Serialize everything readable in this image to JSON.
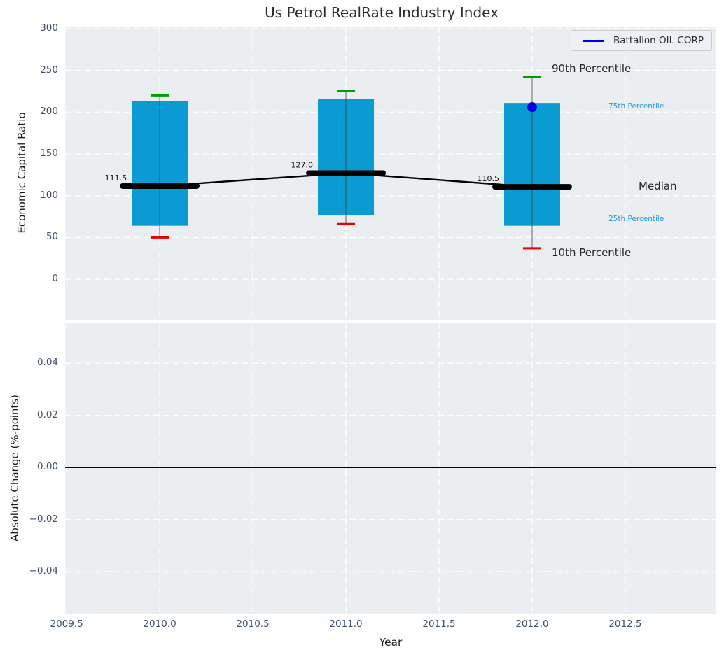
{
  "title": "Us Petrol RealRate Industry Index",
  "legend": {
    "label": "Battalion OIL CORP"
  },
  "annotations": {
    "p90": "90th Percentile",
    "p75": "75th Percentile",
    "median": "Median",
    "p25": "25th Percentile",
    "p10": "10th Percentile"
  },
  "colors": {
    "plot_bg": "#eaeef0",
    "grid": "#ffffff",
    "bar": "#0a9bd2",
    "p90_cap": "#009c00",
    "p10_cap": "#e60000",
    "median_line": "#000000",
    "company": "#0000e6",
    "whisker": "#3a4750",
    "percentile_label": "#1b9cd8",
    "tick_text": "#3f5268",
    "text": "#262626",
    "zero_line": "#000000"
  },
  "chart_data": [
    {
      "type": "boxplot",
      "title": "Us Petrol RealRate Industry Index",
      "ylabel": "Economic Capital Ratio",
      "x": [
        2010,
        2011,
        2012
      ],
      "series": [
        {
          "name": "90th Percentile",
          "values": [
            220,
            225,
            242
          ]
        },
        {
          "name": "75th Percentile",
          "values": [
            213,
            216,
            211
          ]
        },
        {
          "name": "Median",
          "values": [
            111.5,
            127.0,
            110.5
          ]
        },
        {
          "name": "25th Percentile",
          "values": [
            64,
            77,
            64
          ]
        },
        {
          "name": "10th Percentile",
          "values": [
            50,
            66,
            37
          ]
        },
        {
          "name": "Battalion OIL CORP",
          "values": [
            null,
            null,
            206
          ]
        }
      ],
      "median_labels": [
        "111.5",
        "127.0",
        "110.5"
      ],
      "yticks": [
        300,
        250,
        200,
        150,
        100,
        50,
        0
      ],
      "xticks": [
        2009.5,
        2010.0,
        2010.5,
        2011.0,
        2011.5,
        2012.0,
        2012.5
      ],
      "ylim": [
        -48.5,
        302.4
      ],
      "xlim": [
        2009.492,
        2012.989
      ],
      "grid": "white-dashed",
      "legend_position": "upper-right"
    },
    {
      "type": "line",
      "ylabel": "Absolute Change (%-points)",
      "xlabel": "Year",
      "x": [],
      "series": [],
      "yticks": [
        0.04,
        0.02,
        0,
        -0.02,
        -0.04
      ],
      "xticks": [
        2009.5,
        2010.0,
        2010.5,
        2011.0,
        2011.5,
        2012.0,
        2012.5
      ],
      "ylim": [
        -0.0561,
        0.0556
      ],
      "xlim": [
        2009.492,
        2012.989
      ],
      "zero_line": 0,
      "grid": "white-dashed"
    }
  ]
}
